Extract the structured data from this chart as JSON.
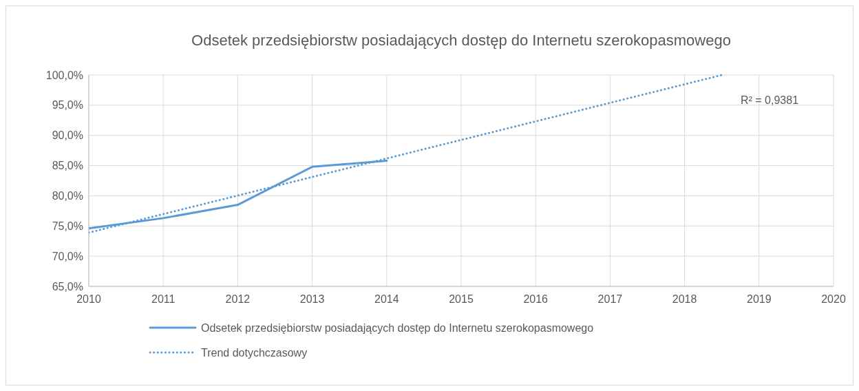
{
  "chart_data": {
    "type": "line",
    "title": "Odsetek przedsiębiorstw posiadających dostęp do Internetu szerokopasmowego",
    "x": [
      2010,
      2011,
      2012,
      2013,
      2014
    ],
    "series": [
      {
        "name": "Odsetek przedsiębiorstw posiadających dostęp do Internetu szerokopasmowego",
        "color": "#5b9bd5",
        "values": [
          74.6,
          76.3,
          78.5,
          84.8,
          85.8
        ],
        "line_style": "solid"
      },
      {
        "name": "Trend dotychczasowy",
        "color": "#5b9bd5",
        "x": [
          2010,
          2018.5
        ],
        "values": [
          73.9,
          100
        ],
        "line_style": "dotted"
      }
    ],
    "xlim": [
      2010,
      2020
    ],
    "xticks": [
      2010,
      2011,
      2012,
      2013,
      2014,
      2015,
      2016,
      2017,
      2018,
      2019,
      2020
    ],
    "ylim": [
      65,
      100
    ],
    "yticks": [
      {
        "value": 65,
        "label": "65,0%"
      },
      {
        "value": 70,
        "label": "70,0%"
      },
      {
        "value": 75,
        "label": "75,0%"
      },
      {
        "value": 80,
        "label": "80,0%"
      },
      {
        "value": 85,
        "label": "85,0%"
      },
      {
        "value": 90,
        "label": "90,0%"
      },
      {
        "value": 95,
        "label": "95,0%"
      },
      {
        "value": 100,
        "label": "100,0%"
      }
    ],
    "annotations": [
      "R² = 0,9381"
    ],
    "grid": true,
    "legend": "bottom"
  }
}
